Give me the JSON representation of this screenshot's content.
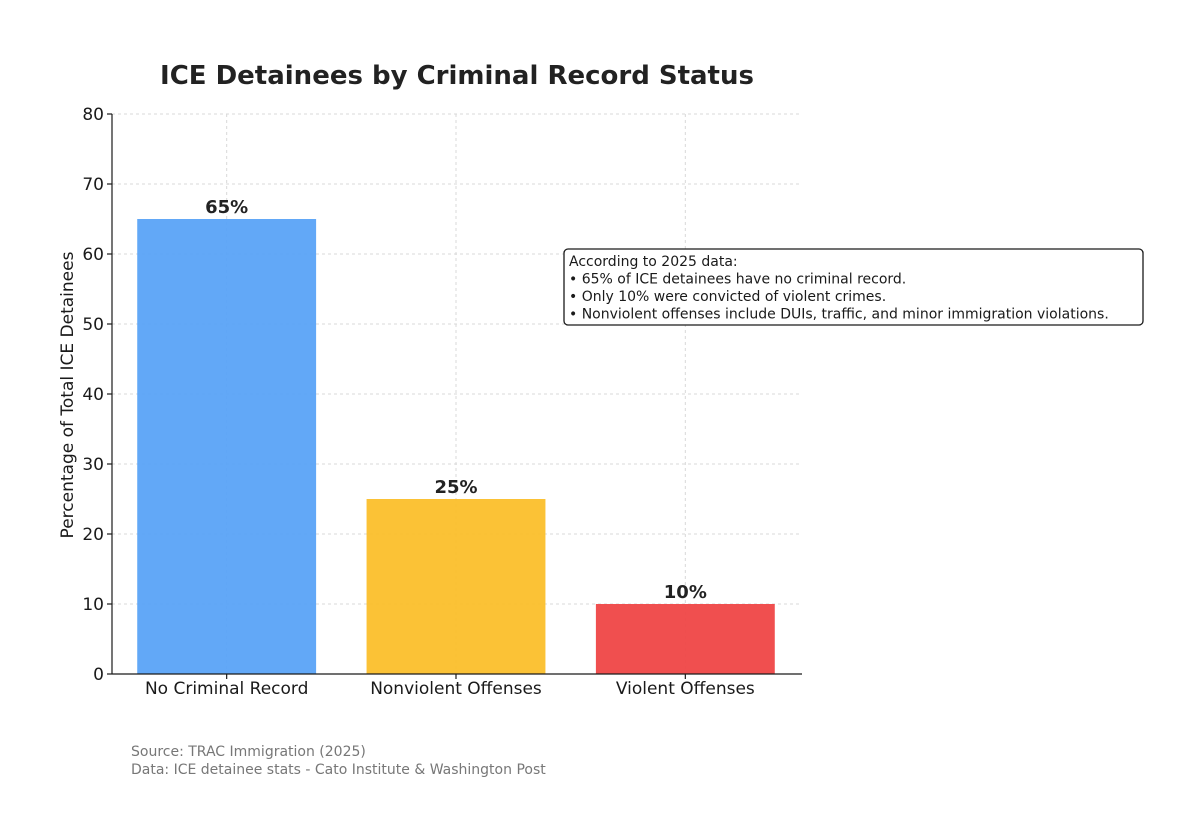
{
  "chart_data": {
    "type": "bar",
    "title": "ICE Detainees by Criminal Record Status",
    "ylabel": "Percentage of Total ICE Detainees",
    "xlabel": "",
    "categories": [
      "No Criminal Record",
      "Nonviolent Offenses",
      "Violent Offenses"
    ],
    "values": [
      65,
      25,
      10
    ],
    "data_labels": [
      "65%",
      "25%",
      "10%"
    ],
    "colors": [
      "#5aa3f7",
      "#fbbf2b",
      "#ef4646"
    ],
    "ylim": [
      0,
      80
    ],
    "yticks": [
      0,
      10,
      20,
      30,
      40,
      50,
      60,
      70,
      80
    ],
    "grid": true,
    "annotation": {
      "lines": [
        "According to 2025 data:",
        "• 65% of ICE detainees have no criminal record.",
        "• Only 10% were convicted of violent crimes.",
        "• Nonviolent offenses include DUIs, traffic, and minor immigration violations."
      ],
      "placement": "right"
    },
    "source_lines": [
      "Source: TRAC Immigration (2025)",
      "Data: ICE detainee stats - Cato Institute & Washington Post"
    ]
  }
}
